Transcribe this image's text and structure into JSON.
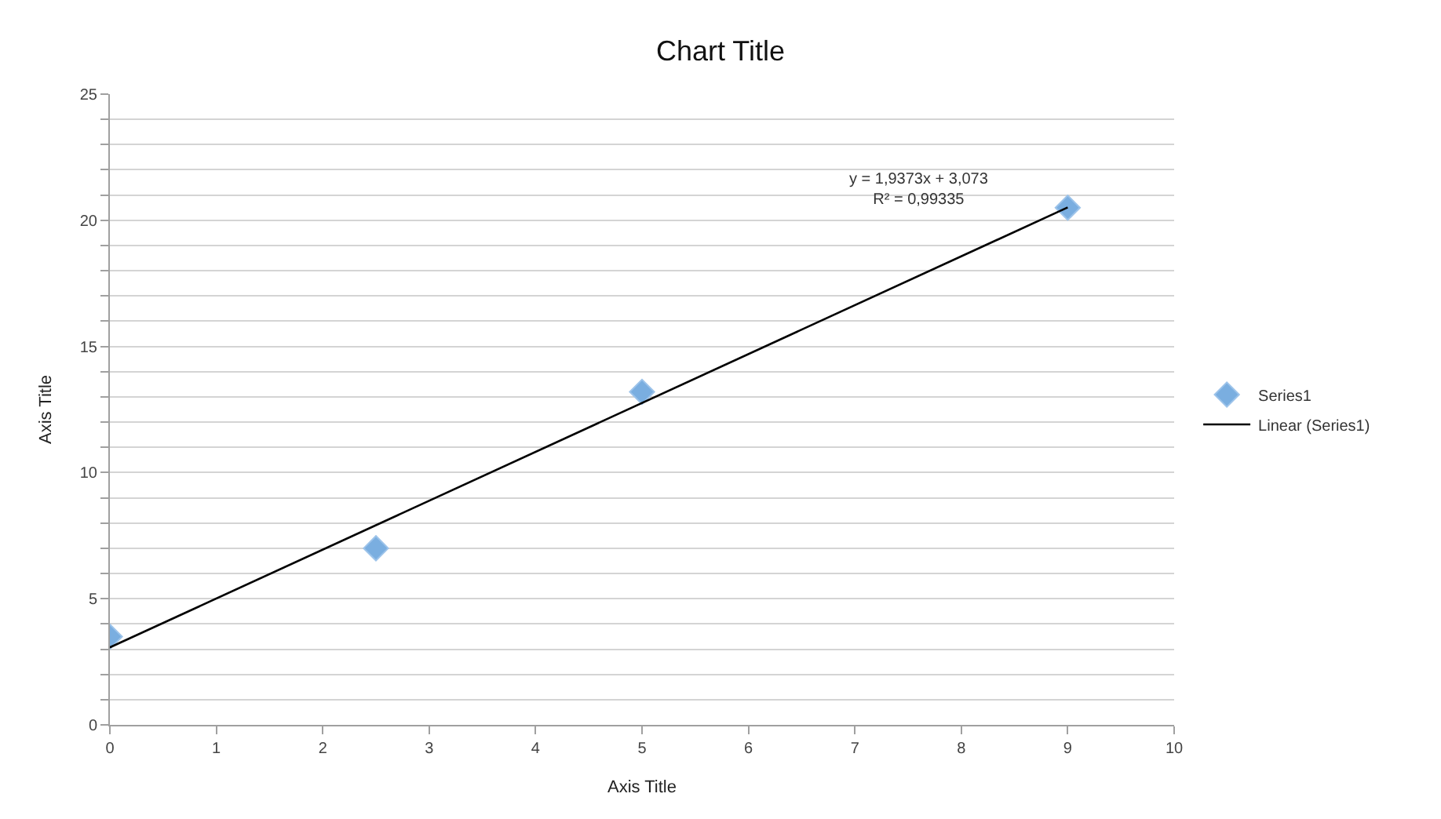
{
  "chart_data": {
    "type": "scatter",
    "title": "Chart Title",
    "xlabel": "Axis Title",
    "ylabel": "Axis Title",
    "series": [
      {
        "name": "Series1",
        "color": "#7aaee0",
        "marker": "diamond",
        "x": [
          0,
          2.5,
          5,
          9
        ],
        "values": [
          3.5,
          7,
          13.2,
          20.5
        ]
      },
      {
        "name": "Linear (Series1)",
        "type": "line",
        "color": "#000000",
        "marker": "none",
        "line_style": "solid",
        "x": [
          0,
          9
        ],
        "values": [
          3.07,
          20.51
        ]
      }
    ],
    "annotations": [
      "y = 1,9373x + 3,073",
      "R² = 0,99335"
    ],
    "xlim": [
      0,
      10
    ],
    "xticks": [
      0,
      1,
      2,
      3,
      4,
      5,
      6,
      7,
      8,
      9,
      10
    ],
    "ylim": [
      0,
      25
    ],
    "yticks": [
      0,
      {
        "value": 1,
        "label": null
      },
      {
        "value": 2,
        "label": null
      },
      {
        "value": 3,
        "label": null
      },
      {
        "value": 4,
        "label": null
      },
      5,
      {
        "value": 6,
        "label": null
      },
      {
        "value": 7,
        "label": null
      },
      {
        "value": 8,
        "label": null
      },
      {
        "value": 9,
        "label": null
      },
      10,
      {
        "value": 11,
        "label": null
      },
      {
        "value": 12,
        "label": null
      },
      {
        "value": 13,
        "label": null
      },
      {
        "value": 14,
        "label": null
      },
      15,
      {
        "value": 16,
        "label": null
      },
      {
        "value": 17,
        "label": null
      },
      {
        "value": 18,
        "label": null
      },
      {
        "value": 19,
        "label": null
      },
      20,
      {
        "value": 21,
        "label": null
      },
      {
        "value": 22,
        "label": null
      },
      {
        "value": 23,
        "label": null
      },
      {
        "value": 24,
        "label": null
      },
      25
    ],
    "grid": "y",
    "legend": "right"
  }
}
